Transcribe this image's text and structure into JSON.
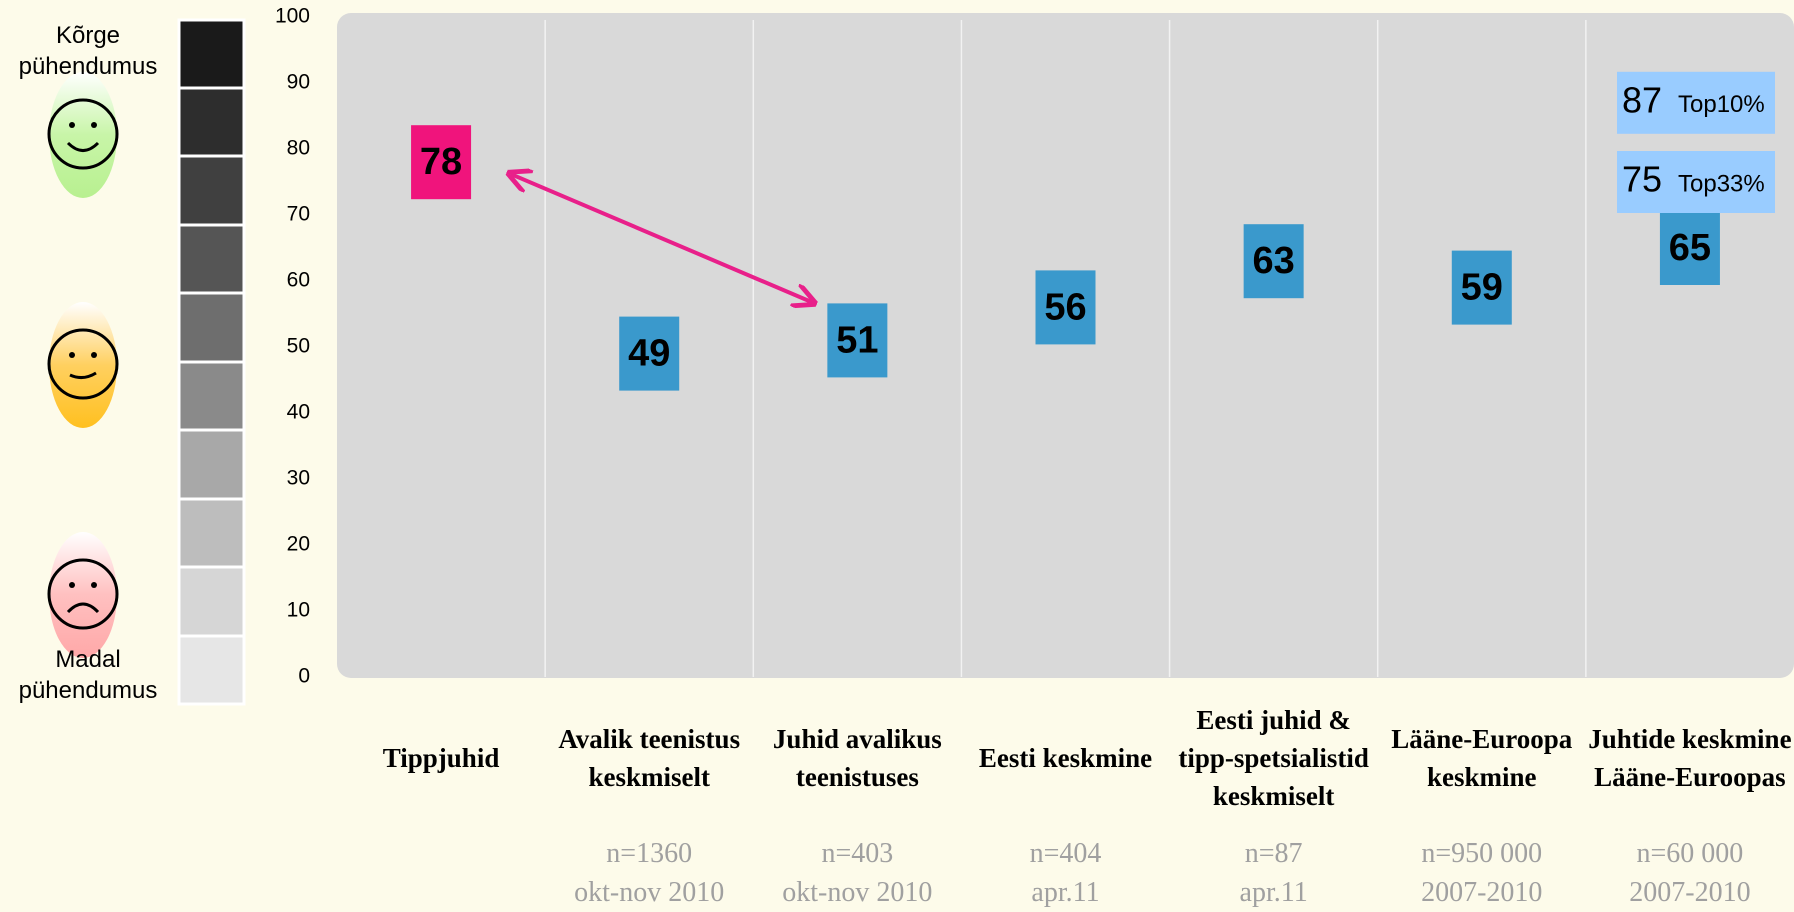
{
  "chart_data": {
    "type": "point",
    "categories": [
      "Tippjuhid",
      "Avalik teenistus keskmiselt",
      "Juhid avalikus teenistuses",
      "Eesti keskmine",
      "Eesti juhid & tipp-spetsialistid keskmiselt",
      "Lääne-Euroopa keskmine",
      "Juhtide keskmine Lääne-Euroopas"
    ],
    "sample_sizes": [
      null,
      "n=1360",
      "n=403",
      "n=404",
      "n=87",
      "n=950 000",
      "n=60 000"
    ],
    "periods": [
      null,
      "okt-nov 2010",
      "okt-nov 2010",
      "apr.11",
      "apr.11",
      "2007-2010",
      "2007-2010"
    ],
    "values": [
      78,
      49,
      51,
      56,
      63,
      59,
      65
    ],
    "colors": [
      "#f0147c",
      "#3a99cc",
      "#3a99cc",
      "#3a99cc",
      "#3a99cc",
      "#3a99cc",
      "#3a99cc"
    ],
    "benchmarks": [
      {
        "value": 87,
        "label": "Top10%"
      },
      {
        "value": 75,
        "label": "Top33%"
      }
    ],
    "benchmark_color": "#99ccff",
    "scale_labels": {
      "high": "Kõrge pühendumus",
      "low": "Madal pühendumus"
    },
    "ylim": [
      0,
      100
    ],
    "yticks": [
      0,
      10,
      20,
      30,
      40,
      50,
      60,
      70,
      80,
      90,
      100
    ]
  }
}
